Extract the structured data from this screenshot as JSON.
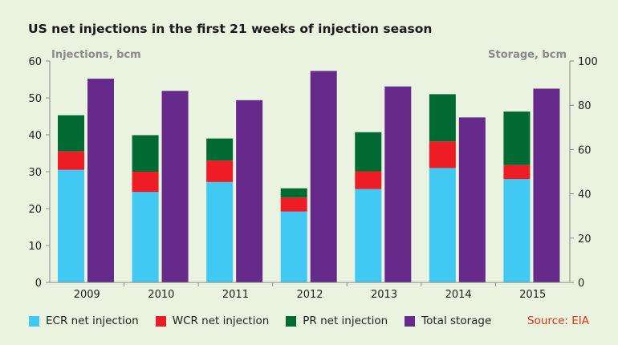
{
  "title": "US net injections in the first 21 weeks of injection season",
  "source": "Source: EIA",
  "colors": {
    "ecr": "#41c8f3",
    "wcr": "#ee1c25",
    "pr": "#006a33",
    "storage": "#662a8b",
    "axis": "#8a8a8a",
    "axis_label": "#8a8a8a",
    "source": "#e0301e"
  },
  "chart_data": {
    "type": "bar",
    "stacked_primary": true,
    "categories": [
      "2009",
      "2010",
      "2011",
      "2012",
      "2013",
      "2014",
      "2015"
    ],
    "series": [
      {
        "name": "ECR net injection",
        "axis": "left",
        "color": "#41c8f3",
        "values": [
          30.5,
          24.5,
          27.2,
          19.2,
          25.3,
          31.0,
          28.0
        ]
      },
      {
        "name": "WCR net injection",
        "axis": "left",
        "color": "#ee1c25",
        "values": [
          5.0,
          5.5,
          5.8,
          3.8,
          4.8,
          7.2,
          3.8
        ]
      },
      {
        "name": "PR net injection",
        "axis": "left",
        "color": "#006a33",
        "values": [
          9.8,
          9.9,
          6.0,
          2.5,
          10.6,
          12.8,
          14.5
        ]
      },
      {
        "name": "Total storage",
        "axis": "right",
        "color": "#662a8b",
        "values": [
          92,
          86.5,
          82.3,
          95.5,
          88.5,
          74.5,
          87.5
        ]
      }
    ],
    "y_left": {
      "label": "Injections, bcm",
      "min": 0,
      "max": 60,
      "ticks": [
        0,
        10,
        20,
        30,
        40,
        50,
        60
      ]
    },
    "y_right": {
      "label": "Storage, bcm",
      "min": 0,
      "max": 100,
      "ticks": [
        0,
        20,
        40,
        60,
        80,
        100
      ]
    },
    "grid": false,
    "legend_position": "bottom"
  }
}
